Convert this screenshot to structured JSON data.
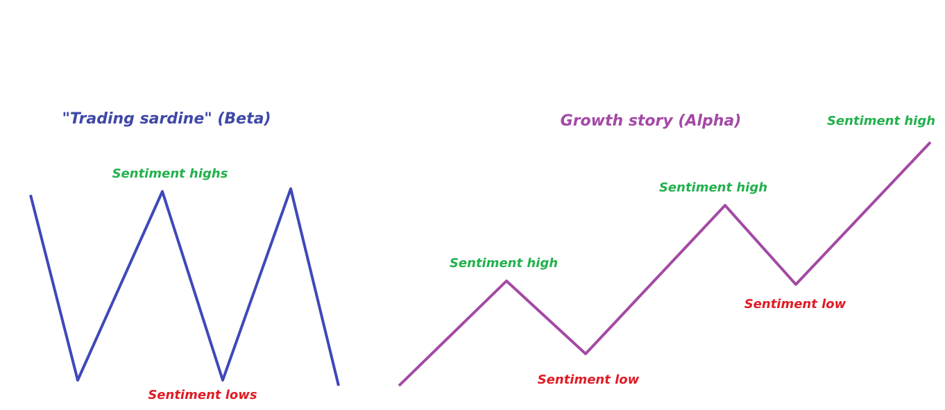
{
  "left": {
    "title": "\"Trading sardine\" (Beta)",
    "high_label": "Sentiment highs",
    "low_label": "Sentiment lows"
  },
  "right": {
    "title": "Growth story (Alpha)",
    "labels": [
      "Sentiment high",
      "Sentiment low",
      "Sentiment high",
      "Sentiment low",
      "Sentiment high"
    ]
  }
}
